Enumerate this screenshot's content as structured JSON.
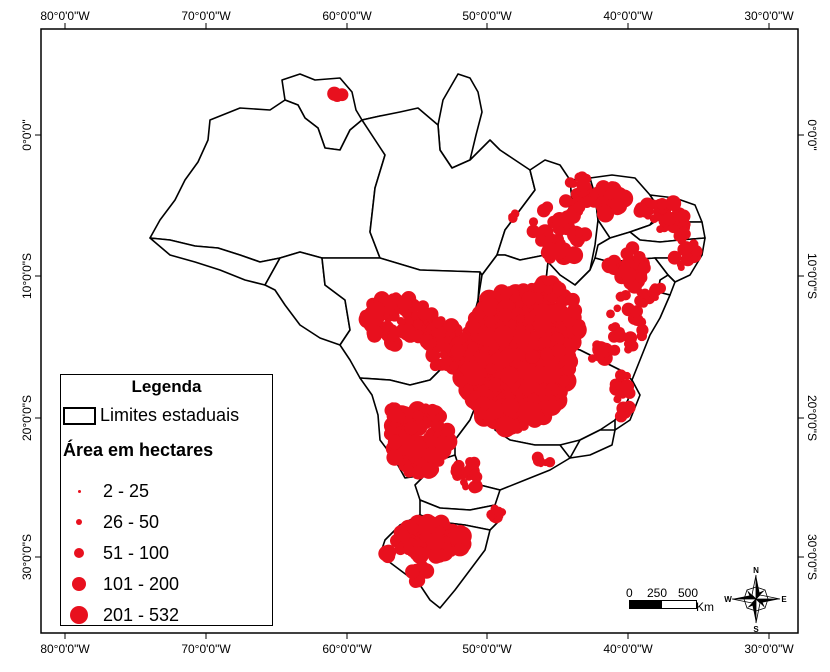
{
  "map": {
    "ticks": {
      "lon": [
        "80°0'0\"W",
        "70°0'0\"W",
        "60°0'0\"W",
        "50°0'0\"W",
        "40°0'0\"W",
        "30°0'0\"W"
      ],
      "lat": [
        "0°0'0\"",
        "10°0'0\"S",
        "20°0'0\"S",
        "30°0'0\"S"
      ]
    },
    "colors": {
      "points": "#e8101e",
      "states_fill": "#ffffff",
      "states_stroke": "#000000"
    }
  },
  "legend": {
    "title": "Legenda",
    "states_label": "Limites estaduais",
    "size_title": "Área em hectares",
    "classes": [
      "2 - 25",
      "26 - 50",
      "51 - 100",
      "101 - 200",
      "201 - 532"
    ]
  },
  "scale_bar": {
    "labels": [
      "0",
      "250",
      "500"
    ],
    "unit": "Km"
  },
  "north_arrow": {
    "n": "N",
    "s": "S",
    "e": "E",
    "w": "W"
  }
}
